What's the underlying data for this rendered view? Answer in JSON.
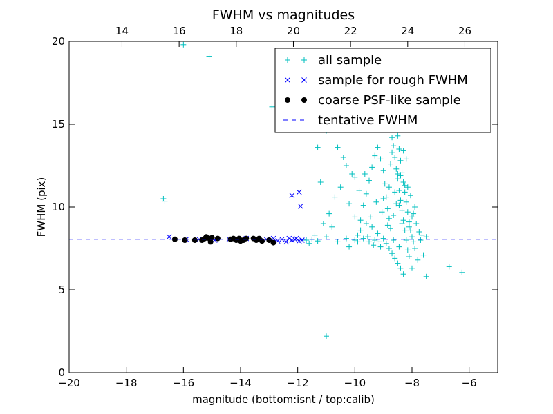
{
  "chart_data": {
    "type": "scatter",
    "title": "FWHM vs magnitudes",
    "xlabel": "magnitude (bottom:isnt / top:calib)",
    "ylabel": "FWHM (pix)",
    "xlim": [
      -20,
      -5
    ],
    "ylim": [
      0,
      20
    ],
    "x_ticks": [
      -20,
      -18,
      -16,
      -14,
      -12,
      -10,
      -8,
      -6
    ],
    "x_tick_labels": [
      "−20",
      "−18",
      "−16",
      "−14",
      "−12",
      "−10",
      "−8",
      "−6"
    ],
    "y_ticks": [
      0,
      5,
      10,
      15,
      20
    ],
    "y_tick_labels": [
      "0",
      "5",
      "10",
      "15",
      "20"
    ],
    "top_axis": {
      "xlim": [
        12.15,
        27.15
      ],
      "ticks": [
        14,
        16,
        18,
        20,
        22,
        24,
        26
      ],
      "tick_labels": [
        "14",
        "16",
        "18",
        "20",
        "22",
        "24",
        "26"
      ]
    },
    "grid": false,
    "legend_position": "top-right",
    "colors": {
      "all_sample": "#00bfbf",
      "rough_sample": "#0000ff",
      "psf_sample": "#000000",
      "tentative_line": "#0000ff"
    },
    "series": [
      {
        "name": "all sample",
        "marker": "plus",
        "points": [
          [
            -16.0,
            19.8
          ],
          [
            -15.1,
            19.1
          ],
          [
            -12.9,
            16.05
          ],
          [
            -11.2,
            15.4
          ],
          [
            -11.0,
            14.6
          ],
          [
            -10.3,
            14.8
          ],
          [
            -16.7,
            10.5
          ],
          [
            -16.65,
            10.35
          ],
          [
            -11.3,
            13.6
          ],
          [
            -10.6,
            13.6
          ],
          [
            -10.4,
            13.0
          ],
          [
            -10.3,
            12.5
          ],
          [
            -10.1,
            12.0
          ],
          [
            -10.0,
            11.8
          ],
          [
            -10.5,
            11.2
          ],
          [
            -10.7,
            10.6
          ],
          [
            -10.2,
            10.2
          ],
          [
            -11.2,
            11.5
          ],
          [
            -10.9,
            9.6
          ],
          [
            -11.1,
            9.0
          ],
          [
            -10.8,
            8.8
          ],
          [
            -11.4,
            8.3
          ],
          [
            -11.0,
            8.2
          ],
          [
            -10.6,
            7.9
          ],
          [
            -10.3,
            8.1
          ],
          [
            -10.0,
            8.0
          ],
          [
            -11.6,
            7.8
          ],
          [
            -11.5,
            8.05
          ],
          [
            -11.7,
            8.0
          ],
          [
            -11.3,
            7.95
          ],
          [
            -11.0,
            2.2
          ],
          [
            -10.2,
            7.6
          ],
          [
            -9.9,
            8.3
          ],
          [
            -9.8,
            9.2
          ],
          [
            -9.7,
            10.1
          ],
          [
            -9.6,
            10.8
          ],
          [
            -9.5,
            11.6
          ],
          [
            -9.4,
            12.4
          ],
          [
            -9.3,
            13.1
          ],
          [
            -9.2,
            13.6
          ],
          [
            -9.1,
            12.9
          ],
          [
            -9.0,
            12.2
          ],
          [
            -8.95,
            11.4
          ],
          [
            -8.9,
            10.6
          ],
          [
            -8.85,
            9.9
          ],
          [
            -8.8,
            9.3
          ],
          [
            -8.75,
            8.7
          ],
          [
            -8.7,
            14.2
          ],
          [
            -8.65,
            13.7
          ],
          [
            -8.6,
            13.0
          ],
          [
            -8.55,
            12.3
          ],
          [
            -8.5,
            11.7
          ],
          [
            -8.45,
            11.0
          ],
          [
            -8.4,
            10.4
          ],
          [
            -8.35,
            9.8
          ],
          [
            -8.3,
            9.2
          ],
          [
            -8.25,
            8.6
          ],
          [
            -8.2,
            8.0
          ],
          [
            -8.15,
            7.4
          ],
          [
            -8.1,
            7.0
          ],
          [
            -8.6,
            14.7
          ],
          [
            -8.55,
            15.1
          ],
          [
            -8.5,
            14.3
          ],
          [
            -8.45,
            13.5
          ],
          [
            -8.4,
            12.8
          ],
          [
            -8.35,
            12.1
          ],
          [
            -8.3,
            11.5
          ],
          [
            -8.25,
            10.9
          ],
          [
            -8.2,
            10.3
          ],
          [
            -8.15,
            9.7
          ],
          [
            -8.1,
            9.1
          ],
          [
            -8.05,
            8.6
          ],
          [
            -8.0,
            8.2
          ],
          [
            -7.95,
            7.9
          ],
          [
            -7.9,
            7.5
          ],
          [
            -8.9,
            7.8
          ],
          [
            -8.8,
            7.5
          ],
          [
            -8.7,
            7.2
          ],
          [
            -8.6,
            6.9
          ],
          [
            -8.5,
            6.6
          ],
          [
            -8.4,
            6.3
          ],
          [
            -8.3,
            5.95
          ],
          [
            -8.0,
            6.3
          ],
          [
            -7.8,
            6.8
          ],
          [
            -7.6,
            7.1
          ],
          [
            -7.5,
            5.8
          ],
          [
            -6.7,
            6.4
          ],
          [
            -6.25,
            6.05
          ],
          [
            -7.5,
            8.2
          ],
          [
            -7.7,
            8.0
          ],
          [
            -9.0,
            8.1
          ],
          [
            -9.2,
            8.4
          ],
          [
            -9.4,
            8.8
          ],
          [
            -9.6,
            9.0
          ],
          [
            -9.8,
            8.6
          ],
          [
            -10.0,
            9.4
          ],
          [
            -9.55,
            8.2
          ],
          [
            -9.35,
            7.7
          ],
          [
            -9.15,
            7.9
          ],
          [
            -8.85,
            8.9
          ],
          [
            -8.65,
            9.5
          ],
          [
            -8.45,
            10.1
          ],
          [
            -8.25,
            11.3
          ],
          [
            -8.05,
            10.7
          ],
          [
            -7.95,
            9.6
          ],
          [
            -7.85,
            9.0
          ],
          [
            -7.75,
            8.5
          ],
          [
            -7.65,
            8.3
          ],
          [
            -8.75,
            12.6
          ],
          [
            -8.55,
            10.2
          ],
          [
            -8.35,
            9.0
          ],
          [
            -8.15,
            11.2
          ],
          [
            -9.05,
            9.7
          ],
          [
            -9.25,
            10.3
          ],
          [
            -9.45,
            9.4
          ],
          [
            -9.65,
            12.0
          ],
          [
            -9.85,
            11.0
          ],
          [
            -8.2,
            12.9
          ],
          [
            -8.4,
            11.9
          ],
          [
            -8.6,
            10.9
          ],
          [
            -8.8,
            11.2
          ],
          [
            -9.0,
            10.5
          ],
          [
            -8.3,
            13.4
          ],
          [
            -8.5,
            12.0
          ],
          [
            -8.7,
            13.3
          ],
          [
            -8.1,
            8.8
          ],
          [
            -8.0,
            9.4
          ],
          [
            -7.9,
            10.0
          ],
          [
            -8.45,
            7.6
          ],
          [
            -8.65,
            8.0
          ],
          [
            -9.1,
            7.6
          ],
          [
            -9.3,
            8.0
          ],
          [
            -9.5,
            7.9
          ],
          [
            -9.7,
            8.1
          ],
          [
            -9.9,
            7.9
          ]
        ]
      },
      {
        "name": "sample for rough FWHM",
        "marker": "x",
        "points": [
          [
            -16.5,
            8.2
          ],
          [
            -15.9,
            8.05
          ],
          [
            -15.45,
            8.05
          ],
          [
            -14.9,
            8.0
          ],
          [
            -14.4,
            8.05
          ],
          [
            -13.8,
            8.1
          ],
          [
            -13.1,
            8.05
          ],
          [
            -12.85,
            8.1
          ],
          [
            -12.7,
            7.95
          ],
          [
            -12.55,
            8.05
          ],
          [
            -12.4,
            7.9
          ],
          [
            -12.3,
            8.1
          ],
          [
            -12.2,
            8.0
          ],
          [
            -12.1,
            8.05
          ],
          [
            -12.05,
            8.1
          ],
          [
            -11.95,
            7.95
          ],
          [
            -11.85,
            8.0
          ],
          [
            -12.2,
            10.7
          ],
          [
            -11.95,
            10.9
          ],
          [
            -11.9,
            10.05
          ]
        ]
      },
      {
        "name": "coarse PSF-like sample",
        "marker": "dot",
        "points": [
          [
            -16.3,
            8.05
          ],
          [
            -15.95,
            8.0
          ],
          [
            -15.6,
            8.0
          ],
          [
            -15.35,
            8.0
          ],
          [
            -15.25,
            8.1
          ],
          [
            -15.2,
            8.2
          ],
          [
            -15.1,
            8.1
          ],
          [
            -15.05,
            7.9
          ],
          [
            -15.0,
            8.15
          ],
          [
            -14.8,
            8.1
          ],
          [
            -14.35,
            8.05
          ],
          [
            -14.25,
            8.1
          ],
          [
            -14.15,
            8.0
          ],
          [
            -14.05,
            8.1
          ],
          [
            -14.0,
            7.95
          ],
          [
            -13.9,
            8.0
          ],
          [
            -13.8,
            8.1
          ],
          [
            -13.55,
            8.1
          ],
          [
            -13.45,
            8.0
          ],
          [
            -13.35,
            8.1
          ],
          [
            -13.25,
            7.95
          ],
          [
            -13.0,
            8.0
          ],
          [
            -12.85,
            7.85
          ]
        ]
      },
      {
        "name": "tentative FWHM",
        "marker": "dashed-line",
        "y": 8.05
      }
    ]
  }
}
